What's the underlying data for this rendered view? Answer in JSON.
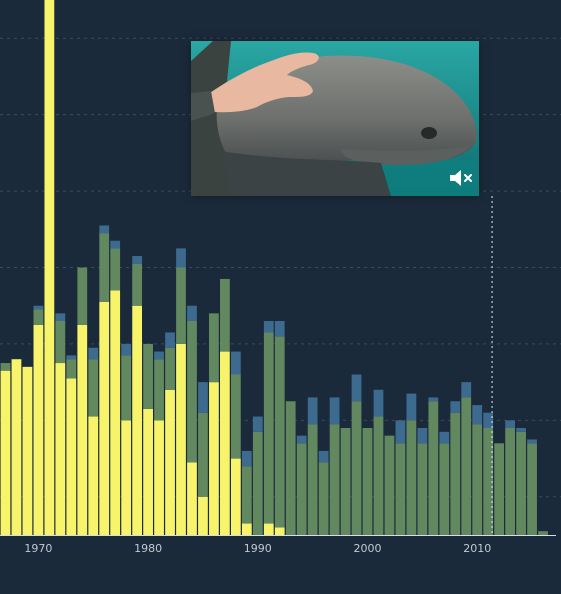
{
  "chart_data": {
    "type": "bar",
    "stacked": true,
    "x": [
      1967,
      1968,
      1969,
      1970,
      1971,
      1972,
      1973,
      1974,
      1975,
      1976,
      1977,
      1978,
      1979,
      1980,
      1981,
      1982,
      1983,
      1984,
      1985,
      1986,
      1987,
      1988,
      1989,
      1990,
      1991,
      1992,
      1993,
      1994,
      1995,
      1996,
      1997,
      1998,
      1999,
      2000,
      2001,
      2002,
      2003,
      2004,
      2005,
      2006,
      2007,
      2008,
      2009,
      2010,
      2011,
      2012,
      2013,
      2014,
      2015,
      2016,
      2017
    ],
    "series": [
      {
        "color": "#f7f36a",
        "values": [
          43,
          46,
          44,
          55,
          140,
          45,
          41,
          55,
          31,
          61,
          64,
          30,
          60,
          33,
          30,
          38,
          50,
          19,
          10,
          40,
          48,
          20,
          3,
          0,
          3,
          2,
          0,
          0,
          0,
          0,
          0,
          0,
          0,
          0,
          0,
          0,
          0,
          0,
          0,
          0,
          0,
          0,
          0,
          0,
          0,
          0,
          0,
          0,
          0,
          0,
          0
        ]
      },
      {
        "color": "#62885f",
        "values": [
          2,
          0,
          0,
          4,
          0,
          11,
          5,
          15,
          15,
          18,
          11,
          17,
          11,
          17,
          16,
          11,
          20,
          37,
          22,
          18,
          19,
          22,
          15,
          27,
          50,
          50,
          35,
          24,
          29,
          19,
          29,
          28,
          35,
          28,
          31,
          26,
          24,
          30,
          24,
          35,
          24,
          32,
          36,
          29,
          28,
          24,
          28,
          27,
          24,
          1,
          0
        ]
      },
      {
        "color": "#3d6a8f",
        "values": [
          0,
          0,
          0,
          1,
          0,
          2,
          1,
          0,
          3,
          2,
          2,
          3,
          2,
          0,
          2,
          4,
          5,
          4,
          8,
          0,
          0,
          6,
          4,
          4,
          3,
          4,
          0,
          2,
          7,
          3,
          7,
          0,
          7,
          0,
          7,
          0,
          6,
          7,
          4,
          1,
          3,
          3,
          4,
          5,
          4,
          0,
          2,
          1,
          1,
          0,
          0
        ]
      }
    ],
    "x_ticks": [
      "1970",
      "1980",
      "1990",
      "2000",
      "2010"
    ],
    "ylim": [
      0,
      140
    ],
    "grid": "horizontal dashed",
    "marker_year": 2011,
    "inset": "video thumbnail"
  },
  "video": {
    "mute_icon": "speaker-muted-icon"
  }
}
